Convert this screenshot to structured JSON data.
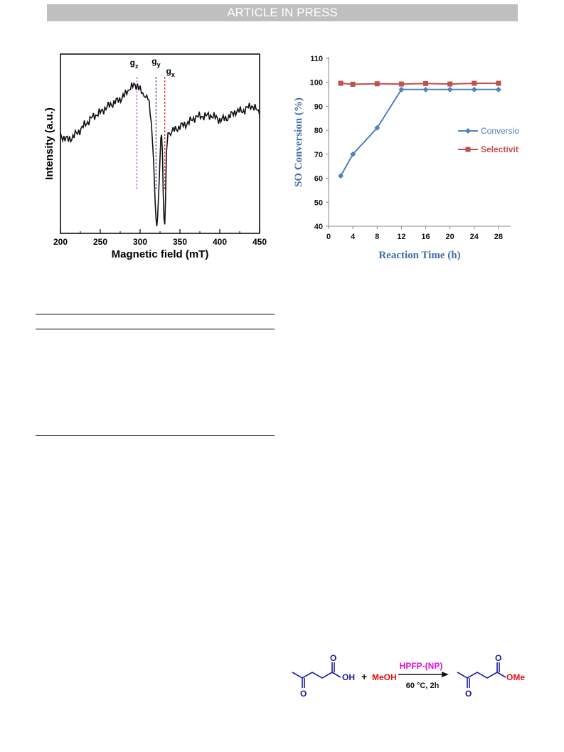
{
  "header": {
    "banner": "ARTICLE IN PRESS"
  },
  "epr_chart": {
    "chart_data": {
      "type": "line",
      "xlabel": "Magnetic field (mT)",
      "ylabel": "Intensity (a.u.)",
      "xlim": [
        200,
        450
      ],
      "xticks": [
        "200",
        "250",
        "300",
        "350",
        "400",
        "450"
      ],
      "markers": [
        {
          "sym": "g",
          "sub": "z",
          "x": 296,
          "color": "#e040e0"
        },
        {
          "sym": "g",
          "sub": "y",
          "x": 320,
          "color": "#3a3ad0"
        },
        {
          "sym": "g",
          "sub": "x",
          "x": 331,
          "color": "#e02020"
        }
      ],
      "series": [
        {
          "values": [
            [
              200,
              0.54
            ],
            [
              210,
              0.53
            ],
            [
              220,
              0.57
            ],
            [
              230,
              0.61
            ],
            [
              240,
              0.64
            ],
            [
              250,
              0.66
            ],
            [
              260,
              0.7
            ],
            [
              270,
              0.74
            ],
            [
              280,
              0.78
            ],
            [
              288,
              0.8
            ],
            [
              295,
              0.82
            ],
            [
              300,
              0.8
            ],
            [
              305,
              0.78
            ],
            [
              310,
              0.74
            ],
            [
              314,
              0.62
            ],
            [
              317,
              0.4
            ],
            [
              319,
              0.16
            ],
            [
              320,
              0.08
            ],
            [
              321,
              0.04
            ],
            [
              322,
              0.09
            ],
            [
              324,
              0.3
            ],
            [
              325,
              0.42
            ],
            [
              326,
              0.53
            ],
            [
              327,
              0.55
            ],
            [
              328,
              0.45
            ],
            [
              329,
              0.22
            ],
            [
              330,
              0.08
            ],
            [
              331,
              0.05
            ],
            [
              332,
              0.2
            ],
            [
              333,
              0.45
            ],
            [
              335,
              0.56
            ],
            [
              340,
              0.58
            ],
            [
              350,
              0.61
            ],
            [
              360,
              0.62
            ],
            [
              370,
              0.64
            ],
            [
              380,
              0.64
            ],
            [
              390,
              0.65
            ],
            [
              400,
              0.64
            ],
            [
              410,
              0.66
            ],
            [
              420,
              0.69
            ],
            [
              430,
              0.68
            ],
            [
              440,
              0.7
            ],
            [
              450,
              0.66
            ]
          ]
        }
      ]
    }
  },
  "conversion_chart": {
    "chart_data": {
      "type": "line",
      "xlabel": "Reaction Time (h)",
      "ylabel": "SO Conversion (%)",
      "xlim": [
        0,
        30
      ],
      "ylim": [
        40,
        110
      ],
      "xticks": [
        "0",
        "4",
        "8",
        "12",
        "16",
        "20",
        "24",
        "28"
      ],
      "yticks": [
        "40",
        "50",
        "60",
        "70",
        "80",
        "90",
        "100",
        "110"
      ],
      "series": [
        {
          "name": "Conversion",
          "color": "#4f81bd",
          "x": [
            2,
            4,
            8,
            12,
            16,
            20,
            24,
            28
          ],
          "values": [
            61,
            70,
            81,
            97,
            97,
            97,
            97,
            97
          ]
        },
        {
          "name": "Selectivity",
          "color": "#c0504d",
          "x": [
            2,
            4,
            8,
            12,
            16,
            20,
            24,
            28
          ],
          "values": [
            99.6,
            99.2,
            99.4,
            99.3,
            99.5,
            99.3,
            99.6,
            99.6
          ]
        }
      ]
    }
  },
  "scheme": {
    "oh": "OH",
    "plus": "+",
    "meoh": "MeOH",
    "catalyst": "HPFP-(NP)",
    "conditions": "60 °C, 2h",
    "ome": "OMe",
    "o_labels": [
      "O",
      "O",
      "O",
      "O"
    ]
  }
}
